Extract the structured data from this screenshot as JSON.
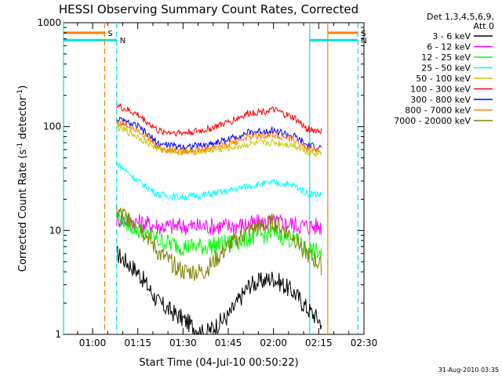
{
  "chart_data": {
    "type": "line",
    "title": "HESSI Observing Summary Count Rates, Corrected",
    "xlabel": "Start Time (04-Jul-10 00:50:22)",
    "ylabel": "Corrected Count Rate (s⁻¹ detector⁻¹)",
    "ylabel_main": "Corrected Count Rate (s",
    "ylabel_mid": " detector",
    "ylabel_end": ")",
    "y_scale": "log",
    "ylim": [
      1,
      1000
    ],
    "xlim": [
      "00:50:22",
      "02:30:00"
    ],
    "x_ticks": [
      "01:00",
      "01:15",
      "01:30",
      "01:45",
      "02:00",
      "02:15",
      "02:30"
    ],
    "y_ticks": [
      "1",
      "10",
      "100",
      "1000"
    ],
    "legend_header": [
      "Det 1,3,4,5,6,9,",
      "Att 0"
    ],
    "legend_position": "right",
    "footer_date": "31-Aug-2010 03:35",
    "flags": [
      {
        "label": "S",
        "color": "#ff7f00",
        "style": "solid",
        "start": "00:50:22",
        "end": "01:04",
        "level": 800
      },
      {
        "label": "S",
        "color": "#ff7f00",
        "style": "solid",
        "start": "02:18",
        "end": "02:28",
        "level": 800
      },
      {
        "label": "N",
        "color": "#00e0e0",
        "style": "solid",
        "start": "00:50:22",
        "end": "01:08",
        "level": 680
      },
      {
        "label": "N",
        "color": "#00e0e0",
        "style": "solid",
        "start": "02:12",
        "end": "02:28",
        "level": 680
      }
    ],
    "vertical_markers": [
      {
        "time": "00:50:22",
        "color": "#00e0e0",
        "style": "solid"
      },
      {
        "time": "01:04",
        "color": "#ff7f00",
        "style": "dashed"
      },
      {
        "time": "01:08",
        "color": "#00e0e0",
        "style": "dashed"
      },
      {
        "time": "02:12",
        "color": "#00e0e0",
        "style": "solid"
      },
      {
        "time": "02:18",
        "color": "#ff7f00",
        "style": "solid"
      },
      {
        "time": "02:28",
        "color": "#00e0e0",
        "style": "dashed"
      }
    ],
    "x": [
      "01:08",
      "01:15",
      "01:22",
      "01:30",
      "01:37",
      "01:45",
      "01:52",
      "02:00",
      "02:07",
      "02:11",
      "02:16"
    ],
    "series": [
      {
        "name": "3 - 6 keV",
        "color": "#000000",
        "values": [
          6,
          4,
          2,
          1.4,
          1,
          1.5,
          3,
          3.5,
          2.5,
          1.8,
          1.3
        ]
      },
      {
        "name": "6 - 12 keV",
        "color": "#ff00ff",
        "values": [
          13,
          12,
          11,
          11,
          11,
          11,
          11.5,
          12,
          11.5,
          11,
          11
        ]
      },
      {
        "name": "12 - 25 keV",
        "color": "#00ff00",
        "values": [
          14,
          10,
          8,
          7,
          7,
          7.5,
          8.5,
          9.5,
          8,
          6.5,
          6
        ]
      },
      {
        "name": "25 - 50 keV",
        "color": "#00ffff",
        "values": [
          45,
          30,
          22,
          21,
          22,
          24,
          27,
          29,
          27,
          23,
          22
        ]
      },
      {
        "name": "50 - 100 keV",
        "color": "#c8c800",
        "values": [
          100,
          80,
          60,
          57,
          58,
          62,
          68,
          70,
          66,
          58,
          55
        ]
      },
      {
        "name": "100 - 300 keV",
        "color": "#ff0000",
        "values": [
          160,
          130,
          90,
          87,
          92,
          110,
          135,
          145,
          120,
          95,
          90
        ]
      },
      {
        "name": "300 - 800 keV",
        "color": "#0000ff",
        "values": [
          118,
          100,
          68,
          64,
          66,
          75,
          88,
          92,
          80,
          66,
          62
        ]
      },
      {
        "name": "800 - 7000 keV",
        "color": "#ff7f00",
        "values": [
          110,
          95,
          62,
          58,
          60,
          68,
          80,
          84,
          74,
          62,
          58
        ]
      },
      {
        "name": "7000 - 20000 keV",
        "color": "#808000",
        "values": [
          15,
          12,
          6,
          4,
          4,
          7,
          10,
          12,
          8.5,
          6,
          4.5
        ]
      }
    ]
  }
}
